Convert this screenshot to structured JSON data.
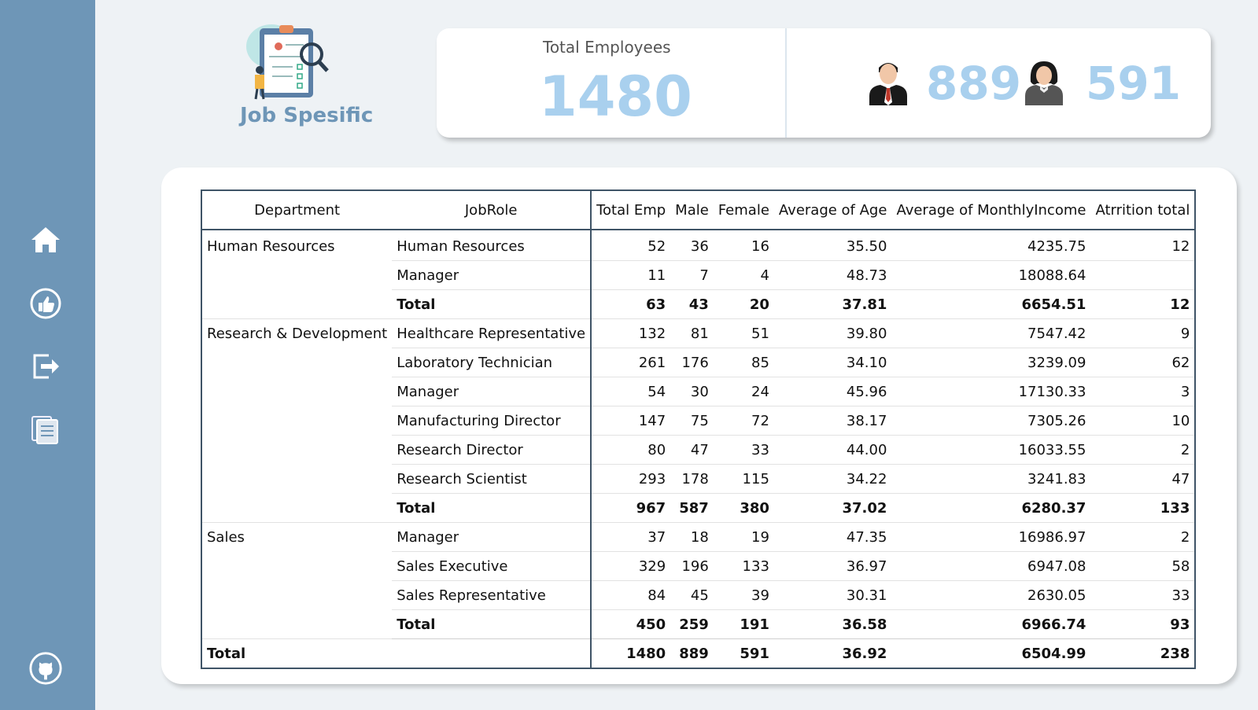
{
  "nav": {
    "items": [
      {
        "icon": "home-icon"
      },
      {
        "icon": "thumbs-up-icon"
      },
      {
        "icon": "exit-icon"
      },
      {
        "icon": "documents-icon"
      }
    ],
    "bottom_icon": "github-icon"
  },
  "header": {
    "logo_icon": "clipboard-magnifier-icon",
    "title": "Job Spesific"
  },
  "kpi": {
    "total_label": "Total Employees",
    "total_value": "1480",
    "male_icon": "male-person-icon",
    "male_value": "889",
    "female_icon": "female-person-icon",
    "female_value": "591"
  },
  "colors": {
    "sidebar": "#6e96b7",
    "kpi_value": "#a9d0ee",
    "background": "#eef2f5"
  },
  "table": {
    "columns": [
      "Department",
      "JobRole",
      "Total Emp",
      "Male",
      "Female",
      "Average of Age",
      "Average of MonthlyIncome",
      "Atrrition total"
    ],
    "rows": [
      {
        "dept": "Human Resources",
        "role": "Human Resources",
        "total": "52",
        "male": "36",
        "female": "16",
        "age": "35.50",
        "income": "4235.75",
        "attrition": "12",
        "kind": "group-start first"
      },
      {
        "dept": "",
        "role": "Manager",
        "total": "11",
        "male": "7",
        "female": "4",
        "age": "48.73",
        "income": "18088.64",
        "attrition": "",
        "kind": ""
      },
      {
        "dept": "",
        "role": "Total",
        "total": "63",
        "male": "43",
        "female": "20",
        "age": "37.81",
        "income": "6654.51",
        "attrition": "12",
        "kind": "subtotal"
      },
      {
        "dept": "Research & Development",
        "role": "Healthcare Representative",
        "total": "132",
        "male": "81",
        "female": "51",
        "age": "39.80",
        "income": "7547.42",
        "attrition": "9",
        "kind": "group-start"
      },
      {
        "dept": "",
        "role": "Laboratory Technician",
        "total": "261",
        "male": "176",
        "female": "85",
        "age": "34.10",
        "income": "3239.09",
        "attrition": "62",
        "kind": ""
      },
      {
        "dept": "",
        "role": "Manager",
        "total": "54",
        "male": "30",
        "female": "24",
        "age": "45.96",
        "income": "17130.33",
        "attrition": "3",
        "kind": ""
      },
      {
        "dept": "",
        "role": "Manufacturing Director",
        "total": "147",
        "male": "75",
        "female": "72",
        "age": "38.17",
        "income": "7305.26",
        "attrition": "10",
        "kind": ""
      },
      {
        "dept": "",
        "role": "Research Director",
        "total": "80",
        "male": "47",
        "female": "33",
        "age": "44.00",
        "income": "16033.55",
        "attrition": "2",
        "kind": ""
      },
      {
        "dept": "",
        "role": "Research Scientist",
        "total": "293",
        "male": "178",
        "female": "115",
        "age": "34.22",
        "income": "3241.83",
        "attrition": "47",
        "kind": ""
      },
      {
        "dept": "",
        "role": "Total",
        "total": "967",
        "male": "587",
        "female": "380",
        "age": "37.02",
        "income": "6280.37",
        "attrition": "133",
        "kind": "subtotal"
      },
      {
        "dept": "Sales",
        "role": "Manager",
        "total": "37",
        "male": "18",
        "female": "19",
        "age": "47.35",
        "income": "16986.97",
        "attrition": "2",
        "kind": "group-start"
      },
      {
        "dept": "",
        "role": "Sales Executive",
        "total": "329",
        "male": "196",
        "female": "133",
        "age": "36.97",
        "income": "6947.08",
        "attrition": "58",
        "kind": ""
      },
      {
        "dept": "",
        "role": "Sales Representative",
        "total": "84",
        "male": "45",
        "female": "39",
        "age": "30.31",
        "income": "2630.05",
        "attrition": "33",
        "kind": ""
      },
      {
        "dept": "",
        "role": "Total",
        "total": "450",
        "male": "259",
        "female": "191",
        "age": "36.58",
        "income": "6966.74",
        "attrition": "93",
        "kind": "subtotal"
      },
      {
        "dept": "Total",
        "role": "",
        "total": "1480",
        "male": "889",
        "female": "591",
        "age": "36.92",
        "income": "6504.99",
        "attrition": "238",
        "kind": "grand group-start"
      }
    ]
  }
}
